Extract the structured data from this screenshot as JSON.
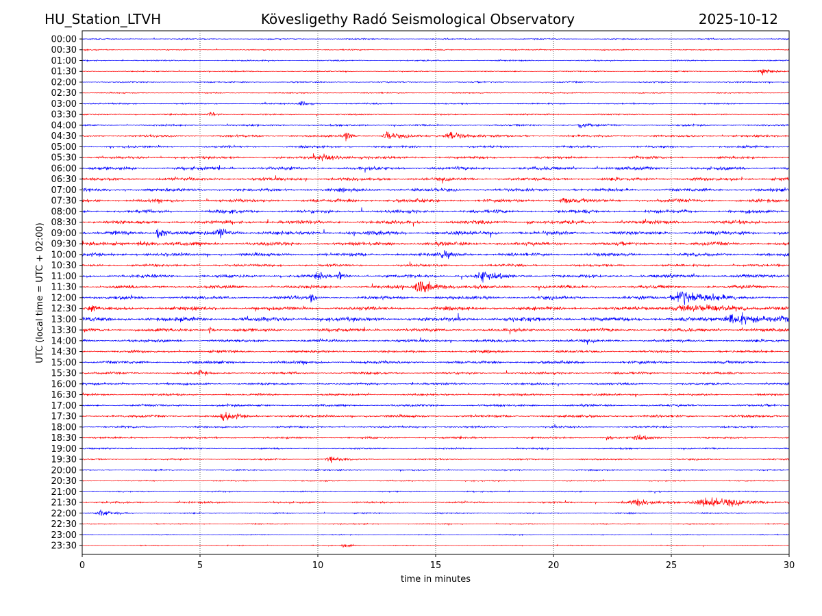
{
  "header": {
    "station": "HU_Station_LTVH",
    "observatory": "Kövesligethy Radó Seismological Observatory",
    "date": "2025-10-12"
  },
  "chart_data": {
    "type": "line",
    "title": "Kövesligethy Radó Seismological Observatory",
    "xlabel": "time in minutes",
    "ylabel": "UTC (local time = UTC + 02:00)",
    "xlim": [
      0,
      30
    ],
    "x_ticks": [
      "0",
      "5",
      "10",
      "15",
      "20",
      "25",
      "30"
    ],
    "x_tick_values": [
      0,
      5,
      10,
      15,
      20,
      25,
      30
    ],
    "grid": "vertical dotted at x ticks",
    "colors": [
      "#0000ff",
      "#ff0000"
    ],
    "rows": [
      "00:00",
      "00:30",
      "01:00",
      "01:30",
      "02:00",
      "02:30",
      "03:00",
      "03:30",
      "04:00",
      "04:30",
      "05:00",
      "05:30",
      "06:00",
      "06:30",
      "07:00",
      "07:30",
      "08:00",
      "08:30",
      "09:00",
      "09:30",
      "10:00",
      "10:30",
      "11:00",
      "11:30",
      "12:00",
      "12:30",
      "13:00",
      "13:30",
      "14:00",
      "14:30",
      "15:00",
      "15:30",
      "16:00",
      "16:30",
      "17:00",
      "17:30",
      "18:00",
      "18:30",
      "19:00",
      "19:30",
      "20:00",
      "20:30",
      "21:00",
      "21:30",
      "22:00",
      "22:30",
      "23:00",
      "23:30"
    ],
    "noise_level": [
      0.3,
      0.3,
      0.35,
      0.3,
      0.35,
      0.3,
      0.35,
      0.35,
      0.45,
      0.6,
      0.6,
      0.7,
      0.9,
      0.9,
      0.9,
      0.9,
      0.9,
      1.0,
      1.1,
      1.0,
      0.9,
      0.7,
      0.9,
      0.9,
      0.9,
      1.0,
      1.2,
      0.9,
      0.8,
      0.7,
      0.8,
      0.6,
      0.6,
      0.6,
      0.6,
      0.7,
      0.5,
      0.5,
      0.4,
      0.4,
      0.35,
      0.3,
      0.3,
      0.5,
      0.35,
      0.3,
      0.25,
      0.25
    ],
    "events": [
      {
        "row": "01:30",
        "minute": 28.9,
        "duration": 0.8,
        "amplitude": 2
      },
      {
        "row": "03:00",
        "minute": 9.3,
        "duration": 0.6,
        "amplitude": 1.8
      },
      {
        "row": "03:30",
        "minute": 5.4,
        "duration": 0.5,
        "amplitude": 2
      },
      {
        "row": "04:00",
        "minute": 21.1,
        "duration": 0.6,
        "amplitude": 2.2
      },
      {
        "row": "04:30",
        "minute": 11.2,
        "duration": 0.4,
        "amplitude": 3
      },
      {
        "row": "04:30",
        "minute": 12.9,
        "duration": 0.8,
        "amplitude": 3
      },
      {
        "row": "04:30",
        "minute": 15.6,
        "duration": 1.2,
        "amplitude": 3.2
      },
      {
        "row": "05:30",
        "minute": 10.2,
        "duration": 1.5,
        "amplitude": 2
      },
      {
        "row": "07:30",
        "minute": 20.4,
        "duration": 0.8,
        "amplitude": 2
      },
      {
        "row": "08:30",
        "minute": 18.9,
        "duration": 0.2,
        "amplitude": 3
      },
      {
        "row": "09:00",
        "minute": 3.2,
        "duration": 0.6,
        "amplitude": 4
      },
      {
        "row": "09:00",
        "minute": 5.8,
        "duration": 0.8,
        "amplitude": 3
      },
      {
        "row": "09:30",
        "minute": 2.5,
        "duration": 0.8,
        "amplitude": 2
      },
      {
        "row": "10:00",
        "minute": 15.3,
        "duration": 0.8,
        "amplitude": 2
      },
      {
        "row": "11:00",
        "minute": 10.0,
        "duration": 0.3,
        "amplitude": 4
      },
      {
        "row": "11:00",
        "minute": 10.9,
        "duration": 0.3,
        "amplitude": 3.5
      },
      {
        "row": "11:00",
        "minute": 16.9,
        "duration": 1.0,
        "amplitude": 3.5
      },
      {
        "row": "11:30",
        "minute": 14.3,
        "duration": 1.3,
        "amplitude": 4.5
      },
      {
        "row": "12:00",
        "minute": 9.7,
        "duration": 0.2,
        "amplitude": 5
      },
      {
        "row": "12:00",
        "minute": 25.4,
        "duration": 1.6,
        "amplitude": 6.5
      },
      {
        "row": "12:30",
        "minute": 0.3,
        "duration": 0.3,
        "amplitude": 3
      },
      {
        "row": "12:30",
        "minute": 25.5,
        "duration": 4.0,
        "amplitude": 2
      },
      {
        "row": "13:00",
        "minute": 27.6,
        "duration": 1.8,
        "amplitude": 4.5
      },
      {
        "row": "13:30",
        "minute": 5.4,
        "duration": 0.2,
        "amplitude": 3
      },
      {
        "row": "15:30",
        "minute": 5.0,
        "duration": 0.3,
        "amplitude": 3
      },
      {
        "row": "17:30",
        "minute": 6.0,
        "duration": 0.8,
        "amplitude": 3
      },
      {
        "row": "18:30",
        "minute": 22.3,
        "duration": 0.2,
        "amplitude": 2.5
      },
      {
        "row": "18:30",
        "minute": 23.5,
        "duration": 1.0,
        "amplitude": 1.8
      },
      {
        "row": "19:30",
        "minute": 10.5,
        "duration": 0.8,
        "amplitude": 2
      },
      {
        "row": "21:30",
        "minute": 26.5,
        "duration": 3.0,
        "amplitude": 3
      },
      {
        "row": "21:30",
        "minute": 23.5,
        "duration": 2.0,
        "amplitude": 1.8
      },
      {
        "row": "22:00",
        "minute": 0.8,
        "duration": 1.0,
        "amplitude": 2
      },
      {
        "row": "23:30",
        "minute": 11.1,
        "duration": 0.6,
        "amplitude": 1.5
      }
    ]
  }
}
